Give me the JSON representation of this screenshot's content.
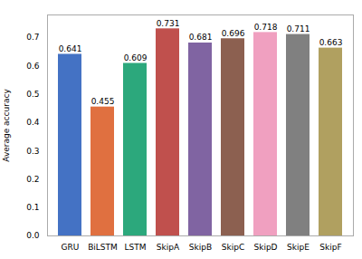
{
  "chart_data": {
    "type": "bar",
    "categories": [
      "GRU",
      "BiLSTM",
      "LSTM",
      "SkipA",
      "SkipB",
      "SkipC",
      "SkipD",
      "SkipE",
      "SkipF"
    ],
    "values": [
      0.641,
      0.455,
      0.609,
      0.731,
      0.681,
      0.696,
      0.718,
      0.711,
      0.663
    ],
    "colors": [
      "#4472c4",
      "#e07040",
      "#2ca87c",
      "#c0504d",
      "#8064a2",
      "#8c6050",
      "#f0a0c0",
      "#808080",
      "#b0a060"
    ],
    "ylabel": "Average accuracy",
    "ylim": [
      0,
      0.78
    ],
    "yticks": [
      {
        "value": 0,
        "label": "0.0"
      },
      0.1,
      0.2,
      0.3,
      0.4,
      0.5,
      0.6,
      0.7
    ],
    "data_labels": true,
    "grid": false
  }
}
